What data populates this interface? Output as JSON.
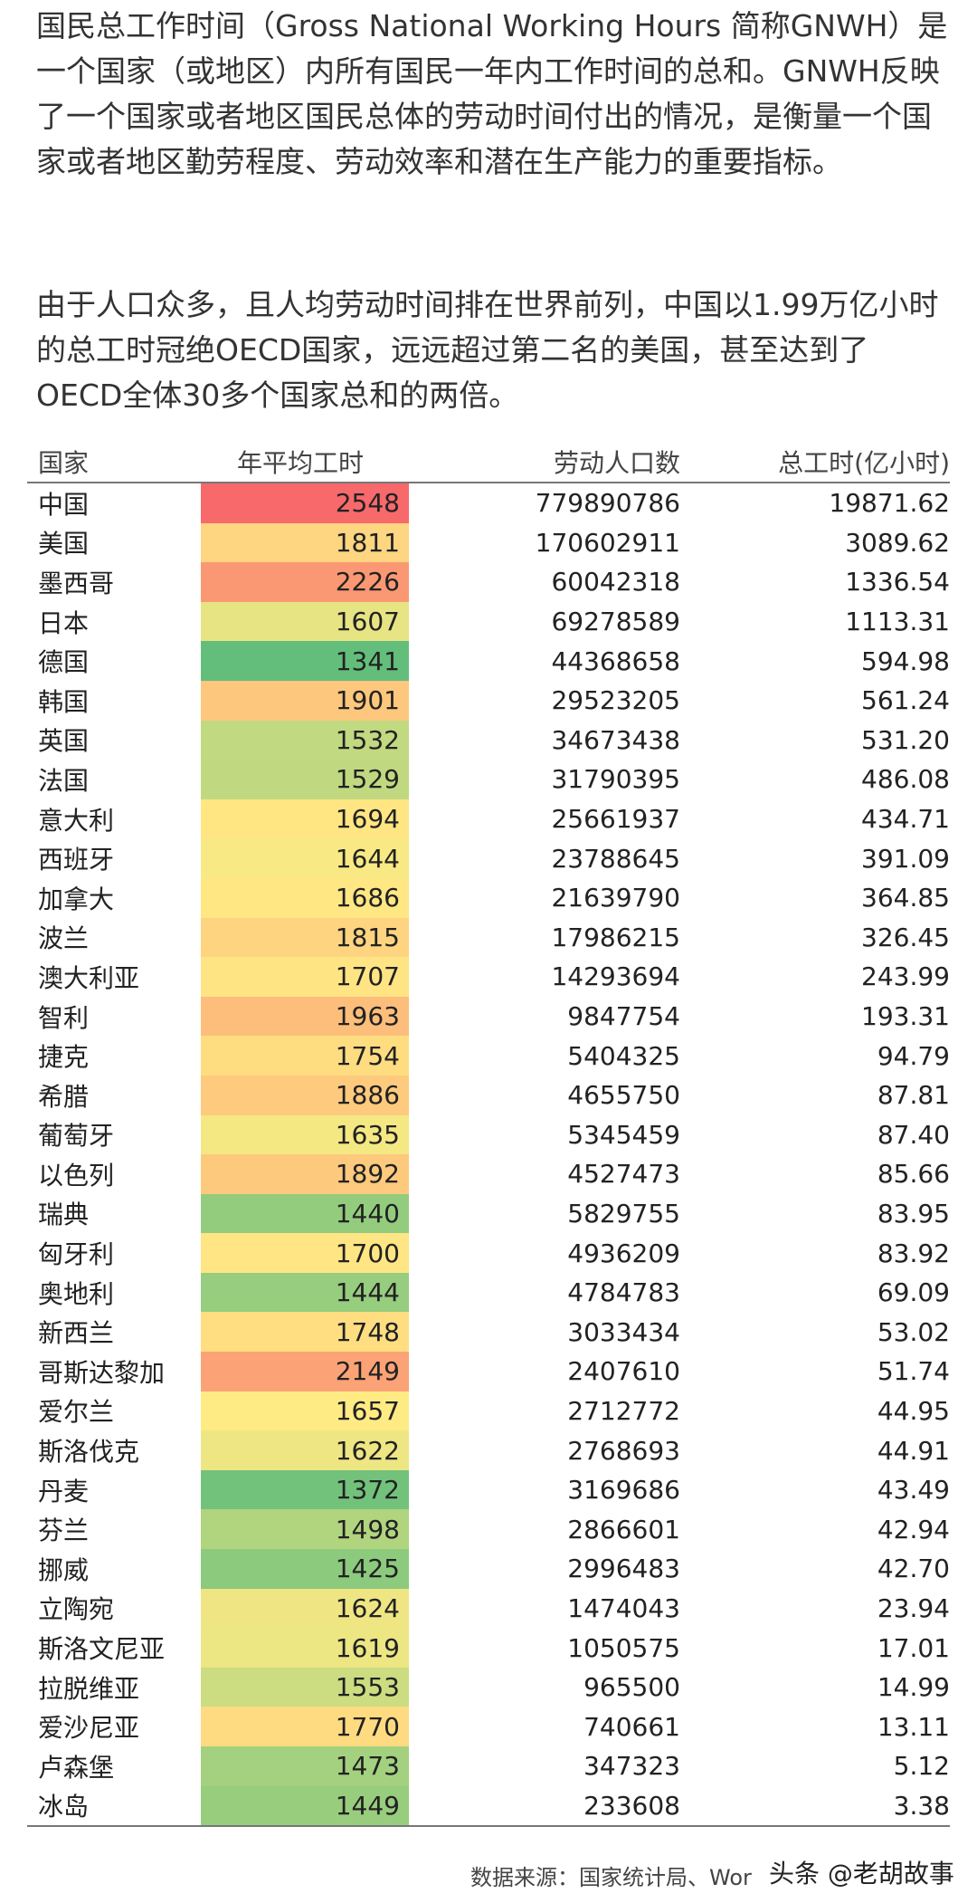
{
  "paragraphs": [
    "国民总工作时间（Gross National Working Hours 简称GNWH）是一个国家（或地区）内所有国民一年内工作时间的总和。GNWH反映了一个国家或者地区国民总体的劳动时间付出的情况，是衡量一个国家或者地区勤劳程度、劳动效率和潜在生产能力的重要指标。",
    "由于人口众多，且人均劳动时间排在世界前列，中国以1.99万亿小时的总工时冠绝OECD国家，远远超过第二名的美国，甚至达到了OECD全体30多个国家总和的两倍。"
  ],
  "table": {
    "headers": [
      "国家",
      "年平均工时",
      "劳动人口数",
      "总工时(亿小时)"
    ],
    "rows": [
      [
        "中国",
        2548,
        "779890786",
        "19871.62"
      ],
      [
        "美国",
        1811,
        "170602911",
        "3089.62"
      ],
      [
        "墨西哥",
        2226,
        "60042318",
        "1336.54"
      ],
      [
        "日本",
        1607,
        "69278589",
        "1113.31"
      ],
      [
        "德国",
        1341,
        "44368658",
        "594.98"
      ],
      [
        "韩国",
        1901,
        "29523205",
        "561.24"
      ],
      [
        "英国",
        1532,
        "34673438",
        "531.20"
      ],
      [
        "法国",
        1529,
        "31790395",
        "486.08"
      ],
      [
        "意大利",
        1694,
        "25661937",
        "434.71"
      ],
      [
        "西班牙",
        1644,
        "23788645",
        "391.09"
      ],
      [
        "加拿大",
        1686,
        "21639790",
        "364.85"
      ],
      [
        "波兰",
        1815,
        "17986215",
        "326.45"
      ],
      [
        "澳大利亚",
        1707,
        "14293694",
        "243.99"
      ],
      [
        "智利",
        1963,
        "9847754",
        "193.31"
      ],
      [
        "捷克",
        1754,
        "5404325",
        "94.79"
      ],
      [
        "希腊",
        1886,
        "4655750",
        "87.81"
      ],
      [
        "葡萄牙",
        1635,
        "5345459",
        "87.40"
      ],
      [
        "以色列",
        1892,
        "4527473",
        "85.66"
      ],
      [
        "瑞典",
        1440,
        "5829755",
        "83.95"
      ],
      [
        "匈牙利",
        1700,
        "4936209",
        "83.92"
      ],
      [
        "奥地利",
        1444,
        "4784783",
        "69.09"
      ],
      [
        "新西兰",
        1748,
        "3033434",
        "53.02"
      ],
      [
        "哥斯达黎加",
        2149,
        "2407610",
        "51.74"
      ],
      [
        "爱尔兰",
        1657,
        "2712772",
        "44.95"
      ],
      [
        "斯洛伐克",
        1622,
        "2768693",
        "44.91"
      ],
      [
        "丹麦",
        1372,
        "3169686",
        "43.49"
      ],
      [
        "芬兰",
        1498,
        "2866601",
        "42.94"
      ],
      [
        "挪威",
        1425,
        "2996483",
        "42.70"
      ],
      [
        "立陶宛",
        1624,
        "1474043",
        "23.94"
      ],
      [
        "斯洛文尼亚",
        1619,
        "1050575",
        "17.01"
      ],
      [
        "拉脱维亚",
        1553,
        "965500",
        "14.99"
      ],
      [
        "爱沙尼亚",
        1770,
        "740661",
        "13.11"
      ],
      [
        "卢森堡",
        1473,
        "347323",
        "5.12"
      ],
      [
        "冰岛",
        1449,
        "233608",
        "3.38"
      ]
    ]
  },
  "source": "数据来源：国家统计局、Wor",
  "watermark": "头条 @老胡故事"
}
